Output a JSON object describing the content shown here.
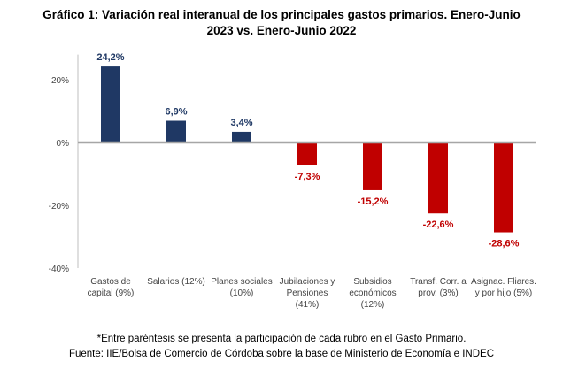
{
  "title_line1": "Gráfico 1: Variación real interanual de los principales gastos primarios. Enero-Junio",
  "title_line2": "2023 vs. Enero-Junio 2022",
  "footnote": "*Entre paréntesis se presenta la participación de cada rubro en el Gasto Primario.",
  "source": "Fuente: IIE/Bolsa de Comercio de Córdoba sobre la base de Ministerio de Economía e INDEC",
  "colors": {
    "positive": "#1f3864",
    "negative": "#c00000",
    "axis": "#bfbfbf",
    "zero_line": "#a6a6a6"
  },
  "chart_data": {
    "type": "bar",
    "title": "Gráfico 1: Variación real interanual de los principales gastos primarios. Enero-Junio 2023 vs. Enero-Junio 2022",
    "categories": [
      [
        "Gastos de",
        "capital (9%)"
      ],
      [
        "Salarios (12%)"
      ],
      [
        "Planes sociales",
        "(10%)"
      ],
      [
        "Jubilaciones y",
        "Pensiones",
        "(41%)"
      ],
      [
        "Subsidios",
        "económicos",
        "(12%)"
      ],
      [
        "Transf. Corr. a",
        "prov. (3%)"
      ],
      [
        "Asignac. Fliares.",
        "y por hijo (5%)"
      ]
    ],
    "values": [
      24.2,
      6.9,
      3.4,
      -7.3,
      -15.2,
      -22.6,
      -28.6
    ],
    "data_labels": [
      "24,2%",
      "6,9%",
      "3,4%",
      "-7,3%",
      "-15,2%",
      "-22,6%",
      "-28,6%"
    ],
    "yticks": [
      20,
      0,
      -20,
      -40
    ],
    "ytick_labels": [
      "20%",
      "0%",
      "-20%",
      "-40%"
    ],
    "ylim": [
      -40,
      28
    ],
    "xlabel": "",
    "ylabel": ""
  }
}
